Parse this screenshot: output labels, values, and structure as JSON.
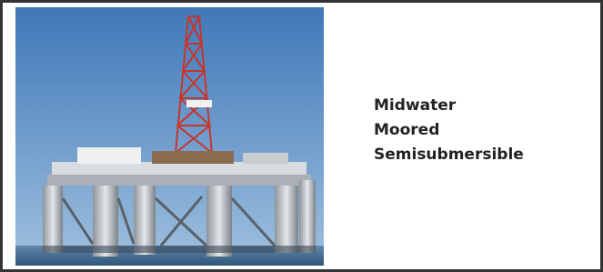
{
  "caption": [
    "Midwater",
    "Moored",
    "Semisubmersible"
  ]
}
